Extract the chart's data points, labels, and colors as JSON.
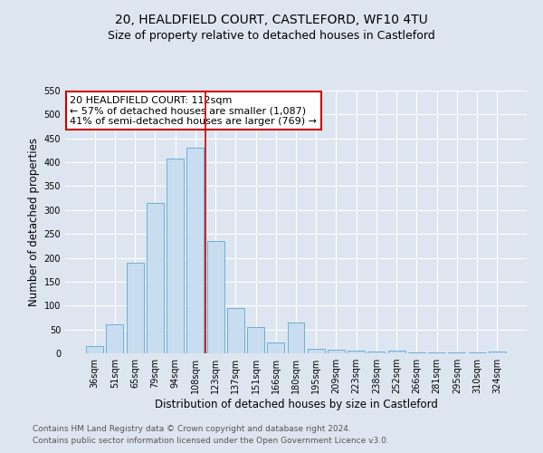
{
  "title": "20, HEALDFIELD COURT, CASTLEFORD, WF10 4TU",
  "subtitle": "Size of property relative to detached houses in Castleford",
  "xlabel": "Distribution of detached houses by size in Castleford",
  "ylabel": "Number of detached properties",
  "footnote1": "Contains HM Land Registry data © Crown copyright and database right 2024.",
  "footnote2": "Contains public sector information licensed under the Open Government Licence v3.0.",
  "categories": [
    "36sqm",
    "51sqm",
    "65sqm",
    "79sqm",
    "94sqm",
    "108sqm",
    "123sqm",
    "137sqm",
    "151sqm",
    "166sqm",
    "180sqm",
    "195sqm",
    "209sqm",
    "223sqm",
    "238sqm",
    "252sqm",
    "266sqm",
    "281sqm",
    "295sqm",
    "310sqm",
    "324sqm"
  ],
  "values": [
    15,
    60,
    190,
    315,
    408,
    430,
    235,
    95,
    55,
    22,
    65,
    9,
    8,
    5,
    3,
    5,
    2,
    1,
    1,
    1,
    3
  ],
  "bar_color": "#c9ddf0",
  "bar_edge_color": "#6baed6",
  "vline_x": 5.5,
  "vline_color": "#cc0000",
  "annotation_line1": "20 HEALDFIELD COURT: 112sqm",
  "annotation_line2": "← 57% of detached houses are smaller (1,087)",
  "annotation_line3": "41% of semi-detached houses are larger (769) →",
  "annotation_box_color": "#ffffff",
  "annotation_box_edge": "#cc0000",
  "ylim": [
    0,
    550
  ],
  "yticks": [
    0,
    50,
    100,
    150,
    200,
    250,
    300,
    350,
    400,
    450,
    500,
    550
  ],
  "background_color": "#dde6f0",
  "plot_background": "#dde6f0",
  "grid_color": "#ffffff",
  "title_fontsize": 10,
  "subtitle_fontsize": 9,
  "axis_label_fontsize": 8.5,
  "tick_fontsize": 7,
  "annotation_fontsize": 8,
  "footnote_fontsize": 6.5
}
